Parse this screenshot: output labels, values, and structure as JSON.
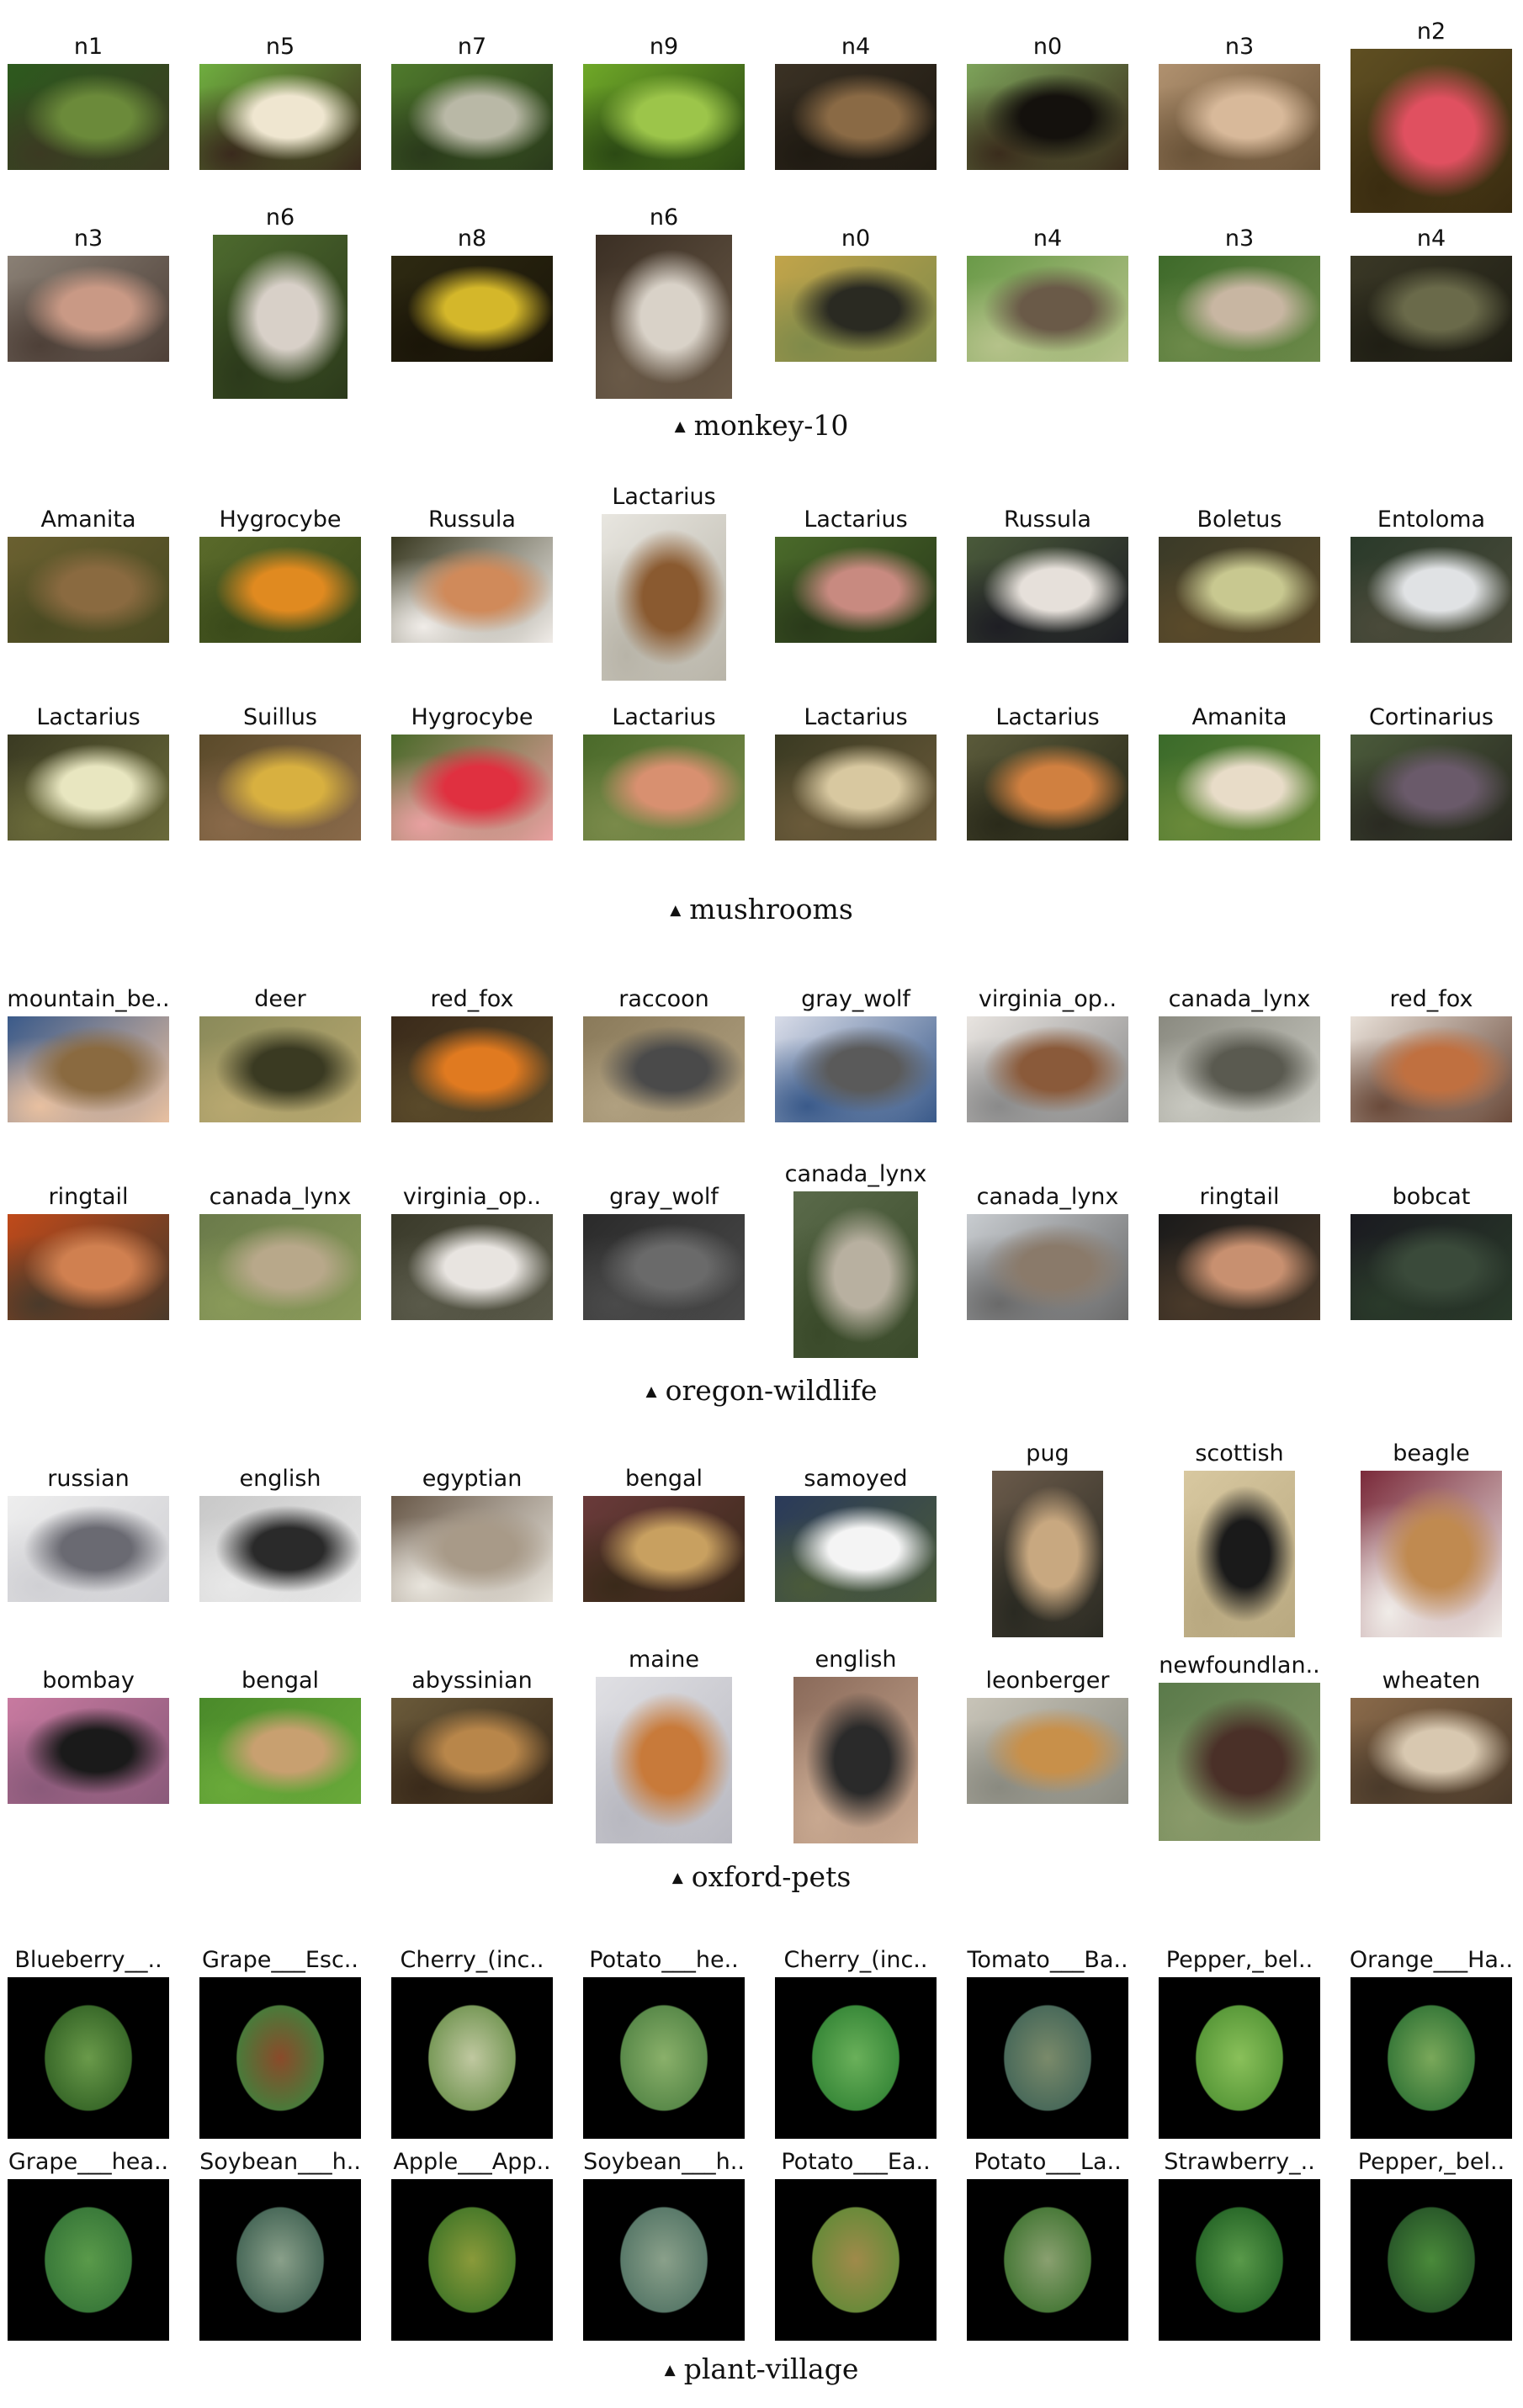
{
  "sections": [
    {
      "caption": "monkey-10",
      "rows": [
        [
          {
            "label": "n1",
            "colors": [
              "#2d5a1e",
              "#6b8a3a",
              "#3b3a22"
            ]
          },
          {
            "label": "n5",
            "colors": [
              "#6fae3f",
              "#efe6d0",
              "#3a2a1d"
            ]
          },
          {
            "label": "n7",
            "colors": [
              "#4f7a2c",
              "#b9b8a6",
              "#2a3a1b"
            ]
          },
          {
            "label": "n9",
            "colors": [
              "#6fa828",
              "#9cc54a",
              "#2c4a14"
            ]
          },
          {
            "label": "n4",
            "colors": [
              "#3a3124",
              "#8a6a45",
              "#1f1a12"
            ]
          },
          {
            "label": "n0",
            "colors": [
              "#7da35a",
              "#14110d",
              "#3a2c1c"
            ]
          },
          {
            "label": "n3",
            "colors": [
              "#b0916f",
              "#d8b99a",
              "#6b5439"
            ]
          },
          {
            "label": "n2",
            "colors": [
              "#5f4f22",
              "#e05060",
              "#3a2c10"
            ]
          }
        ],
        [
          {
            "label": "n3",
            "colors": [
              "#8a8075",
              "#c99985",
              "#4e4038"
            ]
          },
          {
            "label": "n6",
            "colors": [
              "#4d6a2e",
              "#d8d0c8",
              "#2c3a1b"
            ]
          },
          {
            "label": "n8",
            "colors": [
              "#2e2a12",
              "#d4b72a",
              "#1a1508"
            ]
          },
          {
            "label": "n6",
            "colors": [
              "#3b2f24",
              "#d9d2c8",
              "#6a5a48"
            ]
          },
          {
            "label": "n0",
            "colors": [
              "#c1a44a",
              "#2a2a22",
              "#7f8a4a"
            ]
          },
          {
            "label": "n4",
            "colors": [
              "#6a9a48",
              "#6a5a48",
              "#b5c28a"
            ]
          },
          {
            "label": "n3",
            "colors": [
              "#3e6a2a",
              "#c8b6a2",
              "#6d8a4a"
            ]
          },
          {
            "label": "n4",
            "colors": [
              "#3a3826",
              "#6a6a4a",
              "#1f1e14"
            ]
          }
        ]
      ]
    },
    {
      "caption": "mushrooms",
      "rows": [
        [
          {
            "label": "Amanita",
            "colors": [
              "#6a6030",
              "#8a6a40",
              "#4a4a22"
            ]
          },
          {
            "label": "Hygrocybe",
            "colors": [
              "#5a6a2a",
              "#e08a20",
              "#3a4a1a"
            ]
          },
          {
            "label": "Russula",
            "colors": [
              "#3a3a22",
              "#d08a5a",
              "#f0ece8"
            ]
          },
          {
            "label": "Lactarius",
            "colors": [
              "#e8e6e0",
              "#8a5a30",
              "#b8b4a8"
            ]
          },
          {
            "label": "Lactarius",
            "colors": [
              "#4a6a2a",
              "#c88a80",
              "#2a3a1a"
            ]
          },
          {
            "label": "Russula",
            "colors": [
              "#4a5a3a",
              "#e6e0da",
              "#1e1e24"
            ]
          },
          {
            "label": "Boletus",
            "colors": [
              "#3a3a28",
              "#c8c890",
              "#5a4a2a"
            ]
          },
          {
            "label": "Entoloma",
            "colors": [
              "#2a3a2a",
              "#e0e2e4",
              "#4a4a3a"
            ]
          }
        ],
        [
          {
            "label": "Lactarius",
            "colors": [
              "#3a3a22",
              "#e8e6c0",
              "#6a6a3a"
            ]
          },
          {
            "label": "Suillus",
            "colors": [
              "#5a4a2a",
              "#d8b040",
              "#8a6a4a"
            ]
          },
          {
            "label": "Hygrocybe",
            "colors": [
              "#4a6a2a",
              "#e03040",
              "#e8a0a0"
            ]
          },
          {
            "label": "Lactarius",
            "colors": [
              "#4a6a2a",
              "#d89070",
              "#7a8a4a"
            ]
          },
          {
            "label": "Lactarius",
            "colors": [
              "#3a3a22",
              "#d8c8a0",
              "#6a5a3a"
            ]
          },
          {
            "label": "Lactarius",
            "colors": [
              "#5a5a3a",
              "#d08040",
              "#2a2a1a"
            ]
          },
          {
            "label": "Amanita",
            "colors": [
              "#3a6a2a",
              "#e8dcc8",
              "#6a8a3a"
            ]
          },
          {
            "label": "Cortinarius",
            "colors": [
              "#4a5a3a",
              "#6a5a6a",
              "#2a2a22"
            ]
          }
        ]
      ]
    },
    {
      "caption": "oregon-wildlife",
      "rows": [
        [
          {
            "label": "mountain_be..",
            "colors": [
              "#3a5a8a",
              "#8a6a40",
              "#e8c0a0"
            ]
          },
          {
            "label": "deer",
            "colors": [
              "#8a8a5a",
              "#3a3a22",
              "#b8a870"
            ]
          },
          {
            "label": "red_fox",
            "colors": [
              "#3a2a1a",
              "#e07a20",
              "#5a4a2a"
            ]
          },
          {
            "label": "raccoon",
            "colors": [
              "#8a7a5a",
              "#4a4a4a",
              "#b0a080"
            ]
          },
          {
            "label": "gray_wolf",
            "colors": [
              "#d8dce8",
              "#5a5a5a",
              "#3a5a8a"
            ]
          },
          {
            "label": "virginia_op..",
            "colors": [
              "#e8e4e0",
              "#8a5a3a",
              "#8a8a8a"
            ]
          },
          {
            "label": "canada_lynx",
            "colors": [
              "#8a8a80",
              "#5a5a50",
              "#c8c8c0"
            ]
          },
          {
            "label": "red_fox",
            "colors": [
              "#e8e0d8",
              "#c07040",
              "#6a4a3a"
            ]
          }
        ],
        [
          {
            "label": "ringtail",
            "colors": [
              "#c04a1a",
              "#d08050",
              "#4a3a2a"
            ]
          },
          {
            "label": "canada_lynx",
            "colors": [
              "#6a7a4a",
              "#b8a88a",
              "#8a9a5a"
            ]
          },
          {
            "label": "virginia_op..",
            "colors": [
              "#3a3a2a",
              "#e8e4e0",
              "#5a5a4a"
            ]
          },
          {
            "label": "gray_wolf",
            "colors": [
              "#2a2a2a",
              "#6a6a6a",
              "#4a4a4a"
            ]
          },
          {
            "label": "canada_lynx",
            "colors": [
              "#5a6a4a",
              "#b8b0a0",
              "#3a4a2a"
            ]
          },
          {
            "label": "canada_lynx",
            "colors": [
              "#c8ccd0",
              "#8a7a6a",
              "#6a6a6a"
            ]
          },
          {
            "label": "ringtail",
            "colors": [
              "#1a1a1a",
              "#c89070",
              "#4a3a2a"
            ]
          },
          {
            "label": "bobcat",
            "colors": [
              "#1a1a20",
              "#3a4a3a",
              "#2a3a2a"
            ]
          }
        ]
      ]
    },
    {
      "caption": "oxford-pets",
      "rows": [
        [
          {
            "label": "russian",
            "colors": [
              "#eeeeee",
              "#6a6a72",
              "#d0d0d4"
            ]
          },
          {
            "label": "english",
            "colors": [
              "#c8c8c8",
              "#2a2a2a",
              "#e8e8e8"
            ]
          },
          {
            "label": "egyptian",
            "colors": [
              "#6a5a4a",
              "#a89a88",
              "#e8e4dc"
            ]
          },
          {
            "label": "bengal",
            "colors": [
              "#6a3a3a",
              "#c8a060",
              "#3a2a1a"
            ]
          },
          {
            "label": "samoyed",
            "colors": [
              "#2a3a5a",
              "#f4f4f4",
              "#4a5a3a"
            ]
          },
          {
            "label": "pug",
            "colors": [
              "#6a5a4a",
              "#c8a880",
              "#2a2a22"
            ]
          },
          {
            "label": "scottish",
            "colors": [
              "#d8c8a0",
              "#1a1a1a",
              "#b8a880"
            ]
          },
          {
            "label": "beagle",
            "colors": [
              "#7a2a3a",
              "#c08a50",
              "#f0ece8"
            ]
          }
        ],
        [
          {
            "label": "bombay",
            "colors": [
              "#c87aa0",
              "#1a1a1a",
              "#8a5a7a"
            ]
          },
          {
            "label": "bengal",
            "colors": [
              "#4a8a2a",
              "#c8a070",
              "#6aaa3a"
            ]
          },
          {
            "label": "abyssinian",
            "colors": [
              "#6a5a3a",
              "#b8864a",
              "#3a2a1a"
            ]
          },
          {
            "label": "maine",
            "colors": [
              "#e0e0e4",
              "#c87a3a",
              "#b8b8c0"
            ]
          },
          {
            "label": "english",
            "colors": [
              "#8a6a5a",
              "#2a2a2a",
              "#c8a890"
            ]
          },
          {
            "label": "leonberger",
            "colors": [
              "#c8c4b8",
              "#c8904a",
              "#8a8a80"
            ]
          },
          {
            "label": "newfoundlan..",
            "colors": [
              "#5a7a4a",
              "#4a3028",
              "#8a9a6a"
            ]
          },
          {
            "label": "wheaten",
            "colors": [
              "#8a6a4a",
              "#d8c8b0",
              "#4a3a2a"
            ]
          }
        ]
      ]
    },
    {
      "caption": "plant-village",
      "rows": [
        [
          {
            "label": "Blueberry__..",
            "colors": [
              "#000000",
              "#3a6a2a",
              "#6a9a4a"
            ]
          },
          {
            "label": "Grape___Esc..",
            "colors": [
              "#000000",
              "#4a7a3a",
              "#8a4a2a"
            ]
          },
          {
            "label": "Cherry_(inc..",
            "colors": [
              "#000000",
              "#7a9a5a",
              "#c0c8a0"
            ]
          },
          {
            "label": "Potato___he..",
            "colors": [
              "#000000",
              "#5a8a4a",
              "#8ab06a"
            ]
          },
          {
            "label": "Cherry_(inc..",
            "colors": [
              "#000000",
              "#3a8a3a",
              "#6ab05a"
            ]
          },
          {
            "label": "Tomato___Ba..",
            "colors": [
              "#000000",
              "#4a6a5a",
              "#7a8a6a"
            ]
          },
          {
            "label": "Pepper,_bel..",
            "colors": [
              "#000000",
              "#5a9a3a",
              "#8ac05a"
            ]
          },
          {
            "label": "Orange___Ha..",
            "colors": [
              "#000000",
              "#3a7a3a",
              "#7aa85a"
            ]
          }
        ],
        [
          {
            "label": "Grape___hea..",
            "colors": [
              "#000000",
              "#3a7a3a",
              "#5a9a4a"
            ]
          },
          {
            "label": "Soybean___h..",
            "colors": [
              "#000000",
              "#4a6a5a",
              "#8aa08a"
            ]
          },
          {
            "label": "Apple___App..",
            "colors": [
              "#000000",
              "#4a7a2a",
              "#8a9a3a"
            ]
          },
          {
            "label": "Soybean___h..",
            "colors": [
              "#000000",
              "#5a7a6a",
              "#8aa08a"
            ]
          },
          {
            "label": "Potato___Ea..",
            "colors": [
              "#000000",
              "#6a8a3a",
              "#a08a4a"
            ]
          },
          {
            "label": "Potato___La..",
            "colors": [
              "#000000",
              "#4a7a3a",
              "#8aa070"
            ]
          },
          {
            "label": "Strawberry_..",
            "colors": [
              "#000000",
              "#2a6a2a",
              "#5a9a4a"
            ]
          },
          {
            "label": "Pepper,_bel..",
            "colors": [
              "#000000",
              "#2a5a2a",
              "#4a8a3a"
            ]
          }
        ]
      ]
    }
  ]
}
